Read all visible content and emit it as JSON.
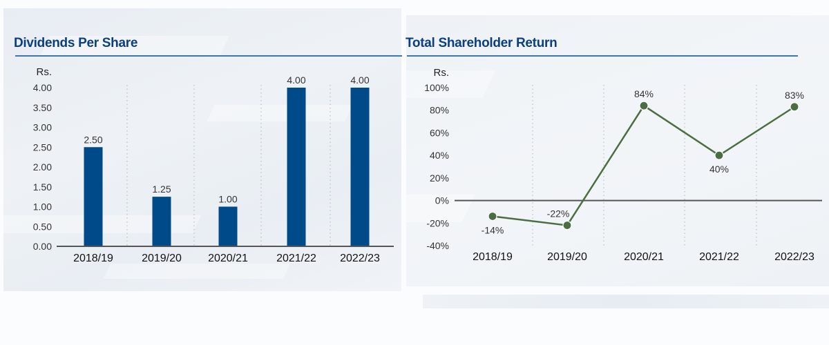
{
  "colors": {
    "title": "#0b3f7f",
    "rule": "#3d76ad",
    "bar": "#004a8a",
    "line": "#4a6e41",
    "axis": "#555555",
    "gridline": "#b0b4b8"
  },
  "chart_data": [
    {
      "type": "bar",
      "title": "Dividends Per Share",
      "ylabel": "Rs.",
      "xlabel": "",
      "categories": [
        "2018/19",
        "2019/20",
        "2020/21",
        "2021/22",
        "2022/23"
      ],
      "values": [
        2.5,
        1.25,
        1.0,
        4.0,
        4.0
      ],
      "value_labels": [
        "2.50",
        "1.25",
        "1.00",
        "4.00",
        "4.00"
      ],
      "ylim": [
        0,
        4
      ],
      "yticks": [
        0,
        0.5,
        1,
        1.5,
        2,
        2.5,
        3,
        3.5,
        4
      ],
      "ytick_labels": [
        "0.00",
        "0.50",
        "1.00",
        "1.50",
        "2.00",
        "2.50",
        "3.00",
        "3.50",
        "4.00"
      ],
      "grid": "vertical dotted separators",
      "legend": "none"
    },
    {
      "type": "line",
      "title": "Total Shareholder Return",
      "ylabel": "Rs.",
      "xlabel": "",
      "categories": [
        "2018/19",
        "2019/20",
        "2020/21",
        "2021/22",
        "2022/23"
      ],
      "values": [
        -14,
        -22,
        84,
        40,
        83
      ],
      "value_labels": [
        "-14%",
        "-22%",
        "84%",
        "40%",
        "83%"
      ],
      "ylim": [
        -40,
        100
      ],
      "yticks": [
        -40,
        -20,
        0,
        20,
        40,
        60,
        80,
        100
      ],
      "ytick_labels": [
        "-40%",
        "-20%",
        "0%",
        "20%",
        "40%",
        "60%",
        "80%",
        "100%"
      ],
      "grid": "vertical dotted separators",
      "legend": "none"
    }
  ]
}
